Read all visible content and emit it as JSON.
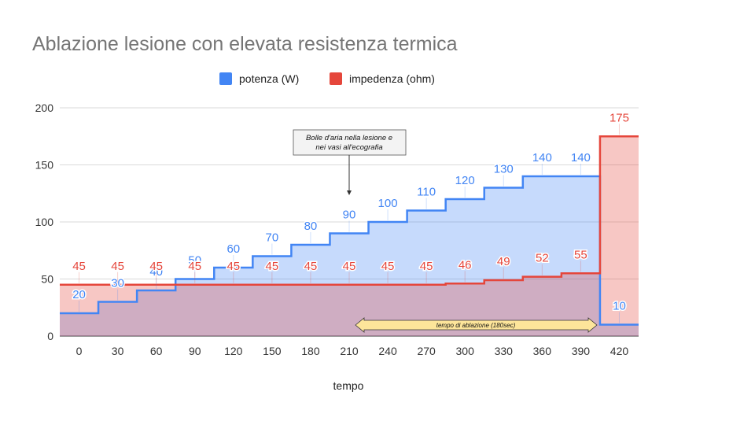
{
  "chart_data": {
    "type": "area",
    "title": "Ablazione lesione con elevata resistenza termica",
    "xlabel": "tempo",
    "ylabel": "",
    "categories": [
      "0",
      "30",
      "60",
      "90",
      "120",
      "150",
      "180",
      "210",
      "240",
      "270",
      "300",
      "330",
      "360",
      "390",
      "420"
    ],
    "ylim": [
      0,
      200
    ],
    "yticks": [
      0,
      50,
      100,
      150,
      200
    ],
    "grid": true,
    "legend_position": "top",
    "stepped": true,
    "series": [
      {
        "name": "potenza (W)",
        "color": "#4285f4",
        "fill": "#c6d9f8",
        "values": [
          20,
          30,
          40,
          50,
          60,
          70,
          80,
          90,
          100,
          110,
          120,
          130,
          140,
          140,
          10
        ]
      },
      {
        "name": "impedenza (ohm)",
        "color": "#e5463b",
        "fill": "#f5c6c2",
        "values": [
          45,
          45,
          45,
          45,
          45,
          45,
          45,
          45,
          45,
          45,
          46,
          49,
          52,
          55,
          175
        ]
      }
    ],
    "annotations": [
      {
        "text_lines": [
          "Bolle d'aria nella lesione e",
          "nei vasi all'ecografia"
        ],
        "points_to": "210"
      }
    ],
    "range_annotation": {
      "text": "tempo di ablazione (180sec)",
      "from": "210",
      "to": "390"
    }
  }
}
